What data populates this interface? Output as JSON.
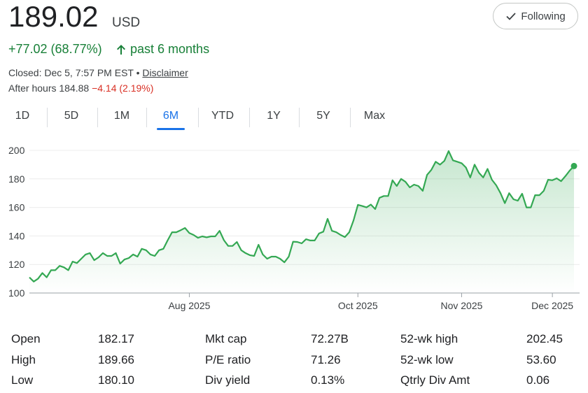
{
  "header": {
    "price": "189.02",
    "currency": "USD",
    "change": "+77.02 (68.77%)",
    "period": "past 6 months",
    "closed": "Closed: Dec 5, 7:57 PM EST",
    "separator": "•",
    "disclaimer": "Disclaimer",
    "after_hours": "After hours 184.88",
    "after_hours_change": "−4.14 (2.19%)",
    "follow_button": "Following"
  },
  "tabs": {
    "labels": [
      "1D",
      "5D",
      "1M",
      "6M",
      "YTD",
      "1Y",
      "5Y",
      "Max"
    ],
    "selected": 3
  },
  "chart_data": {
    "type": "line",
    "categories": [
      null,
      null,
      null,
      null,
      null,
      null,
      null,
      null,
      null,
      null,
      null,
      null,
      null,
      null,
      null,
      null,
      null,
      null,
      null,
      null,
      null,
      null,
      null,
      null,
      null,
      null,
      null,
      null,
      null,
      null,
      null,
      null,
      null,
      null,
      null,
      null,
      null,
      "Aug 2025",
      null,
      null,
      null,
      null,
      null,
      null,
      null,
      null,
      null,
      null,
      null,
      null,
      null,
      null,
      null,
      null,
      null,
      null,
      null,
      null,
      null,
      null,
      null,
      null,
      null,
      null,
      null,
      null,
      null,
      null,
      null,
      null,
      null,
      null,
      null,
      null,
      null,
      null,
      "Oct 2025",
      null,
      null,
      null,
      null,
      null,
      null,
      null,
      null,
      null,
      null,
      null,
      null,
      null,
      null,
      null,
      null,
      null,
      null,
      null,
      null,
      null,
      null,
      null,
      "Nov 2025",
      null,
      null,
      null,
      null,
      null,
      null,
      null,
      null,
      null,
      null,
      null,
      null,
      null,
      null,
      null,
      null,
      null,
      null,
      null,
      null,
      "Dec 2025",
      null,
      null,
      null,
      null,
      null
    ],
    "series": [
      {
        "color": "#34a853",
        "values": [
          111,
          108,
          110,
          114,
          111,
          116,
          116,
          119,
          118,
          116,
          122,
          121,
          124,
          127,
          128,
          123,
          125,
          128,
          126,
          126,
          128,
          120.6,
          123.5,
          124.5,
          127,
          125.5,
          131,
          130,
          127,
          126,
          130,
          131,
          137,
          142.6,
          142.6,
          144,
          145.6,
          142,
          140.7,
          138.7,
          139.7,
          139,
          139.7,
          139.7,
          143.6,
          137,
          133,
          133,
          135.8,
          130,
          128,
          126.5,
          126,
          133.8,
          127,
          124,
          125.5,
          125.5,
          124,
          121.5,
          125.5,
          136,
          135.8,
          134.8,
          137.7,
          136.8,
          136.8,
          141.7,
          143,
          152,
          143.6,
          142.6,
          140.7,
          139.2,
          142.6,
          151,
          161.8,
          161,
          160,
          162,
          158.8,
          166.7,
          168,
          168,
          179,
          175,
          180,
          178,
          174,
          176,
          175,
          171.6,
          182.8,
          186.3,
          192,
          190,
          192.6,
          199.5,
          193,
          192,
          191,
          188,
          181,
          190,
          184.3,
          181,
          187,
          179.4,
          175.5,
          170,
          163,
          170,
          165.7,
          164.7,
          169.6,
          160,
          160,
          168.6,
          168.6,
          171.6,
          179.4,
          179,
          180.4,
          178.4,
          181.9,
          185.8,
          189.02
        ]
      }
    ],
    "ylim": [
      100,
      200
    ],
    "yticks": [
      100,
      120,
      140,
      160,
      180,
      200
    ],
    "grid": true
  },
  "stats": {
    "rows": [
      [
        "Open",
        "182.17",
        "Mkt cap",
        "72.27B",
        "52-wk high",
        "202.45"
      ],
      [
        "High",
        "189.66",
        "P/E ratio",
        "71.26",
        "52-wk low",
        "53.60"
      ],
      [
        "Low",
        "180.10",
        "Div yield",
        "0.13%",
        "Qtrly Div Amt",
        "0.06"
      ]
    ]
  }
}
